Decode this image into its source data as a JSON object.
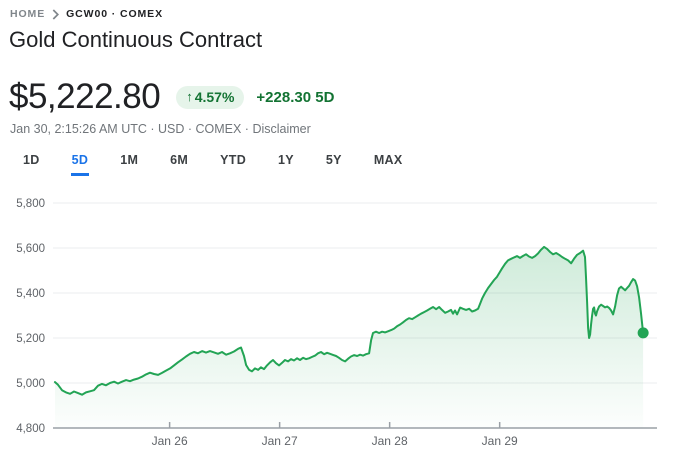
{
  "breadcrumb": {
    "home_label": "HOME",
    "symbol_label": "GCW00 · COMEX"
  },
  "header": {
    "title": "Gold Continuous Contract"
  },
  "quote": {
    "price": "$5,222.80",
    "change_arrow": "↑",
    "change_percent": "4.57%",
    "change_absolute": "+228.30",
    "change_period": "5D",
    "change_combined": "+228.30 5D",
    "meta_prefix": "Jan 30, 2:15:26 AM UTC · USD · COMEX · ",
    "disclaimer_label": "Disclaimer"
  },
  "range_tabs": [
    {
      "label": "1D",
      "active": false
    },
    {
      "label": "5D",
      "active": true
    },
    {
      "label": "1M",
      "active": false
    },
    {
      "label": "6M",
      "active": false
    },
    {
      "label": "YTD",
      "active": false
    },
    {
      "label": "1Y",
      "active": false
    },
    {
      "label": "5Y",
      "active": false
    },
    {
      "label": "MAX",
      "active": false
    }
  ],
  "colors": {
    "accent_blue": "#1a73e8",
    "green_text": "#137333",
    "badge_bg": "#e6f4ea",
    "line_green": "#23a455",
    "fill_green_top": "rgba(35,164,85,0.22)",
    "fill_green_bottom": "rgba(35,164,85,0.01)",
    "title_text": "#202124",
    "muted_text": "#70757a",
    "axis_text": "#5f6368",
    "gridline": "#ebedef",
    "axis_line": "#9aa0a6",
    "tab_inactive": "#3c4043"
  },
  "chart_data": {
    "type": "area",
    "title": "Gold Continuous Contract — 5 day price (USD)",
    "x_unit": "day of January (UTC)",
    "x_domain": [
      24.94,
      30.43
    ],
    "x_ticks": [
      {
        "value": 26,
        "label": "Jan 26"
      },
      {
        "value": 27,
        "label": "Jan 27"
      },
      {
        "value": 28,
        "label": "Jan 28"
      },
      {
        "value": 29,
        "label": "Jan 29"
      }
    ],
    "y_domain": [
      4800,
      5800
    ],
    "y_ticks": [
      {
        "value": 5800,
        "label": "5,800"
      },
      {
        "value": 5600,
        "label": "5,600"
      },
      {
        "value": 5400,
        "label": "5,400"
      },
      {
        "value": 5200,
        "label": "5,200"
      },
      {
        "value": 5000,
        "label": "5,000"
      },
      {
        "value": 4800,
        "label": "4,800"
      }
    ],
    "grid": "horizontal",
    "legend": "none",
    "end_dot": true,
    "last_price": 5222.8,
    "series": [
      {
        "name": "GCW00",
        "points": [
          [
            24.958,
            5004
          ],
          [
            24.985,
            4992
          ],
          [
            25.022,
            4968
          ],
          [
            25.058,
            4958
          ],
          [
            25.095,
            4952
          ],
          [
            25.131,
            4962
          ],
          [
            25.167,
            4955
          ],
          [
            25.204,
            4948
          ],
          [
            25.24,
            4958
          ],
          [
            25.276,
            4963
          ],
          [
            25.313,
            4968
          ],
          [
            25.349,
            4988
          ],
          [
            25.385,
            4996
          ],
          [
            25.422,
            4990
          ],
          [
            25.458,
            5000
          ],
          [
            25.495,
            5006
          ],
          [
            25.531,
            4998
          ],
          [
            25.567,
            5006
          ],
          [
            25.604,
            5013
          ],
          [
            25.64,
            5008
          ],
          [
            25.676,
            5015
          ],
          [
            25.713,
            5020
          ],
          [
            25.749,
            5028
          ],
          [
            25.785,
            5038
          ],
          [
            25.822,
            5046
          ],
          [
            25.858,
            5040
          ],
          [
            25.895,
            5036
          ],
          [
            25.931,
            5045
          ],
          [
            25.967,
            5055
          ],
          [
            26.004,
            5065
          ],
          [
            26.04,
            5078
          ],
          [
            26.076,
            5092
          ],
          [
            26.113,
            5105
          ],
          [
            26.149,
            5118
          ],
          [
            26.185,
            5130
          ],
          [
            26.222,
            5138
          ],
          [
            26.258,
            5132
          ],
          [
            26.295,
            5142
          ],
          [
            26.331,
            5135
          ],
          [
            26.367,
            5142
          ],
          [
            26.404,
            5136
          ],
          [
            26.44,
            5130
          ],
          [
            26.476,
            5138
          ],
          [
            26.513,
            5126
          ],
          [
            26.549,
            5132
          ],
          [
            26.585,
            5140
          ],
          [
            26.622,
            5152
          ],
          [
            26.649,
            5158
          ],
          [
            26.676,
            5120
          ],
          [
            26.695,
            5080
          ],
          [
            26.722,
            5058
          ],
          [
            26.749,
            5052
          ],
          [
            26.776,
            5065
          ],
          [
            26.804,
            5058
          ],
          [
            26.831,
            5070
          ],
          [
            26.858,
            5062
          ],
          [
            26.885,
            5078
          ],
          [
            26.913,
            5092
          ],
          [
            26.94,
            5102
          ],
          [
            26.967,
            5088
          ],
          [
            26.995,
            5078
          ],
          [
            27.022,
            5090
          ],
          [
            27.049,
            5102
          ],
          [
            27.076,
            5096
          ],
          [
            27.104,
            5106
          ],
          [
            27.131,
            5100
          ],
          [
            27.158,
            5110
          ],
          [
            27.185,
            5102
          ],
          [
            27.213,
            5112
          ],
          [
            27.24,
            5106
          ],
          [
            27.267,
            5110
          ],
          [
            27.295,
            5116
          ],
          [
            27.322,
            5122
          ],
          [
            27.349,
            5132
          ],
          [
            27.376,
            5138
          ],
          [
            27.404,
            5128
          ],
          [
            27.431,
            5134
          ],
          [
            27.458,
            5130
          ],
          [
            27.485,
            5125
          ],
          [
            27.513,
            5120
          ],
          [
            27.54,
            5112
          ],
          [
            27.567,
            5102
          ],
          [
            27.595,
            5096
          ],
          [
            27.622,
            5108
          ],
          [
            27.649,
            5118
          ],
          [
            27.676,
            5124
          ],
          [
            27.704,
            5120
          ],
          [
            27.731,
            5126
          ],
          [
            27.758,
            5122
          ],
          [
            27.785,
            5128
          ],
          [
            27.813,
            5132
          ],
          [
            27.831,
            5190
          ],
          [
            27.849,
            5222
          ],
          [
            27.876,
            5228
          ],
          [
            27.904,
            5222
          ],
          [
            27.931,
            5228
          ],
          [
            27.958,
            5225
          ],
          [
            27.985,
            5230
          ],
          [
            28.013,
            5235
          ],
          [
            28.04,
            5242
          ],
          [
            28.067,
            5252
          ],
          [
            28.095,
            5260
          ],
          [
            28.122,
            5270
          ],
          [
            28.149,
            5280
          ],
          [
            28.176,
            5288
          ],
          [
            28.204,
            5284
          ],
          [
            28.231,
            5292
          ],
          [
            28.258,
            5300
          ],
          [
            28.285,
            5308
          ],
          [
            28.313,
            5315
          ],
          [
            28.34,
            5322
          ],
          [
            28.367,
            5330
          ],
          [
            28.395,
            5338
          ],
          [
            28.422,
            5328
          ],
          [
            28.449,
            5338
          ],
          [
            28.476,
            5325
          ],
          [
            28.504,
            5312
          ],
          [
            28.531,
            5318
          ],
          [
            28.558,
            5325
          ],
          [
            28.576,
            5308
          ],
          [
            28.594,
            5322
          ],
          [
            28.613,
            5305
          ],
          [
            28.64,
            5335
          ],
          [
            28.667,
            5330
          ],
          [
            28.695,
            5325
          ],
          [
            28.722,
            5330
          ],
          [
            28.749,
            5318
          ],
          [
            28.776,
            5322
          ],
          [
            28.804,
            5330
          ],
          [
            28.822,
            5352
          ],
          [
            28.84,
            5375
          ],
          [
            28.867,
            5400
          ],
          [
            28.895,
            5422
          ],
          [
            28.922,
            5440
          ],
          [
            28.949,
            5458
          ],
          [
            28.976,
            5472
          ],
          [
            29.004,
            5495
          ],
          [
            29.022,
            5510
          ],
          [
            29.049,
            5530
          ],
          [
            29.076,
            5545
          ],
          [
            29.104,
            5552
          ],
          [
            29.131,
            5558
          ],
          [
            29.158,
            5564
          ],
          [
            29.185,
            5556
          ],
          [
            29.213,
            5565
          ],
          [
            29.24,
            5572
          ],
          [
            29.267,
            5562
          ],
          [
            29.295,
            5556
          ],
          [
            29.322,
            5564
          ],
          [
            29.349,
            5576
          ],
          [
            29.376,
            5592
          ],
          [
            29.404,
            5605
          ],
          [
            29.431,
            5596
          ],
          [
            29.458,
            5582
          ],
          [
            29.485,
            5572
          ],
          [
            29.513,
            5578
          ],
          [
            29.54,
            5570
          ],
          [
            29.567,
            5560
          ],
          [
            29.595,
            5552
          ],
          [
            29.622,
            5545
          ],
          [
            29.649,
            5532
          ],
          [
            29.676,
            5552
          ],
          [
            29.704,
            5570
          ],
          [
            29.731,
            5578
          ],
          [
            29.758,
            5588
          ],
          [
            29.776,
            5560
          ],
          [
            29.785,
            5470
          ],
          [
            29.795,
            5360
          ],
          [
            29.804,
            5245
          ],
          [
            29.813,
            5200
          ],
          [
            29.822,
            5215
          ],
          [
            29.831,
            5262
          ],
          [
            29.84,
            5300
          ],
          [
            29.849,
            5330
          ],
          [
            29.858,
            5336
          ],
          [
            29.867,
            5308
          ],
          [
            29.876,
            5300
          ],
          [
            29.885,
            5318
          ],
          [
            29.904,
            5340
          ],
          [
            29.922,
            5348
          ],
          [
            29.94,
            5342
          ],
          [
            29.958,
            5336
          ],
          [
            29.976,
            5340
          ],
          [
            29.995,
            5334
          ],
          [
            30.013,
            5322
          ],
          [
            30.031,
            5305
          ],
          [
            30.049,
            5340
          ],
          [
            30.067,
            5390
          ],
          [
            30.085,
            5420
          ],
          [
            30.104,
            5428
          ],
          [
            30.122,
            5420
          ],
          [
            30.14,
            5412
          ],
          [
            30.158,
            5422
          ],
          [
            30.176,
            5432
          ],
          [
            30.195,
            5448
          ],
          [
            30.213,
            5462
          ],
          [
            30.231,
            5455
          ],
          [
            30.249,
            5430
          ],
          [
            30.267,
            5380
          ],
          [
            30.285,
            5310
          ],
          [
            30.304,
            5222.8
          ]
        ]
      }
    ]
  }
}
